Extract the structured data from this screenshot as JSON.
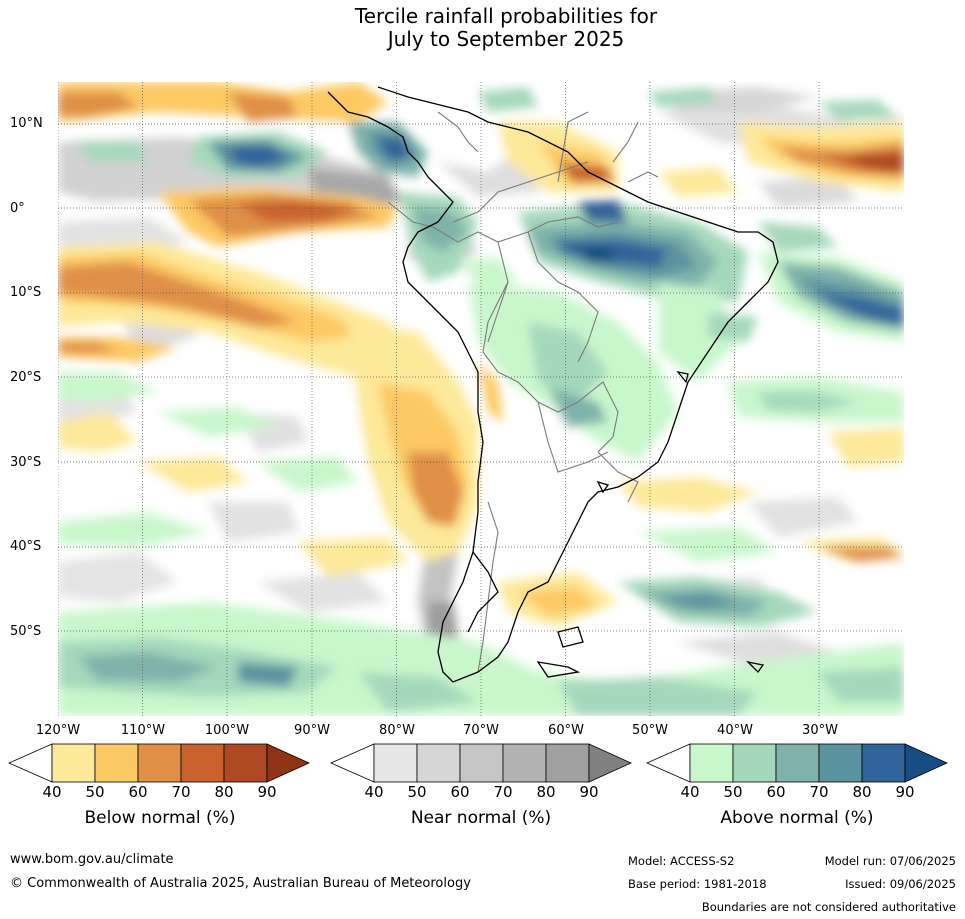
{
  "title": {
    "line1": "Tercile rainfall probabilities for",
    "line2": "July to September 2025"
  },
  "map": {
    "lat_labels": [
      "10°N",
      "0°",
      "10°S",
      "20°S",
      "30°S",
      "40°S",
      "50°S"
    ],
    "lon_labels": [
      "120°W",
      "110°W",
      "100°W",
      "90°W",
      "80°W",
      "70°W",
      "60°W",
      "50°W",
      "40°W",
      "30°W"
    ],
    "gridlines": "dotted"
  },
  "colorbars": [
    {
      "title": "Below normal (%)",
      "ticks": [
        "40",
        "50",
        "60",
        "70",
        "80",
        "90"
      ],
      "colors": [
        "#ffffff",
        "#fde99a",
        "#fdc964",
        "#df8f46",
        "#c9622e",
        "#ae4822",
        "#8f3416"
      ]
    },
    {
      "title": "Near normal (%)",
      "ticks": [
        "40",
        "50",
        "60",
        "70",
        "80",
        "90"
      ],
      "colors": [
        "#ffffff",
        "#e6e6e6",
        "#d6d6d6",
        "#c6c6c6",
        "#b3b3b3",
        "#a0a0a0",
        "#808080"
      ]
    },
    {
      "title": "Above normal (%)",
      "ticks": [
        "40",
        "50",
        "60",
        "70",
        "80",
        "90"
      ],
      "colors": [
        "#ffffff",
        "#c9f7cc",
        "#a5d8bb",
        "#7fb2aa",
        "#5b93a0",
        "#30649a",
        "#174d82"
      ]
    }
  ],
  "footer": {
    "website": "www.bom.gov.au/climate",
    "copyright": "© Commonwealth of Australia 2025, Australian Bureau of Meteorology",
    "model": "Model: ACCESS-S2",
    "base_period": "Base period: 1981-2018",
    "model_run": "Model run: 07/06/2025",
    "issued": "Issued: 09/06/2025",
    "boundaries": "Boundaries are not considered authoritative"
  }
}
